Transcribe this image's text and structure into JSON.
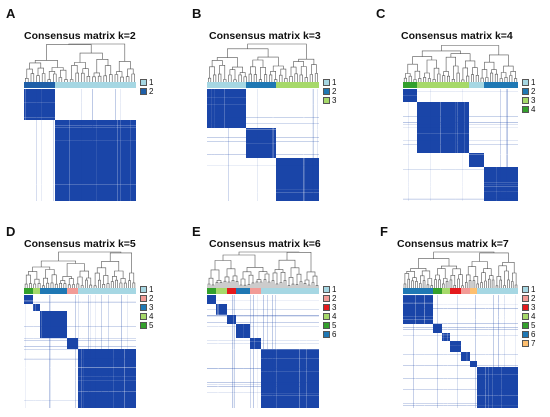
{
  "colors": {
    "matrix_fill": "#1a45a8",
    "matrix_bg": "#ffffff",
    "dendrogram_line": "#555555",
    "classes": {
      "1": "#a6d7e3",
      "2": "#f29b96",
      "3": "#e41a1c",
      "4": "#a6d96a",
      "5": "#33a02c",
      "6": "#1f78b4",
      "7": "#fdbf6f",
      "k2_2": "#1f5fa8",
      "k3_2": "#1f78b4",
      "k3_3": "#a6d96a",
      "k4_4": "#33a02c",
      "k5_2": "#f29b96",
      "k5_3": "#1f78b4",
      "k5_4": "#a6d96a",
      "k5_5": "#33a02c"
    }
  },
  "panels": [
    {
      "letter": "A",
      "title": "Consensus matrix k=2",
      "k": 2,
      "legend": [
        {
          "label": "1",
          "color": "#a6d7e3"
        },
        {
          "label": "2",
          "color": "#1f5fa8"
        }
      ],
      "blocks": [
        0.28,
        0.72
      ],
      "order": [
        "k2_2",
        "1"
      ],
      "noise": 0.1
    },
    {
      "letter": "B",
      "title": "Consensus matrix k=3",
      "k": 3,
      "legend": [
        {
          "label": "1",
          "color": "#a6d7e3"
        },
        {
          "label": "2",
          "color": "#1f78b4"
        },
        {
          "label": "3",
          "color": "#a6d96a"
        }
      ],
      "blocks": [
        0.35,
        0.27,
        0.38
      ],
      "order": [
        "1",
        "k3_2",
        "k3_3"
      ],
      "noise": 0.12
    },
    {
      "letter": "C",
      "title": "Consensus matrix k=4",
      "k": 4,
      "legend": [
        {
          "label": "1",
          "color": "#a6d7e3"
        },
        {
          "label": "2",
          "color": "#1f78b4"
        },
        {
          "label": "3",
          "color": "#a6d96a"
        },
        {
          "label": "4",
          "color": "#33a02c"
        }
      ],
      "blocks": [
        0.12,
        0.45,
        0.13,
        0.3
      ],
      "order": [
        "k4_4",
        "k3_3",
        "1",
        "k3_2"
      ],
      "noise": 0.14
    },
    {
      "letter": "D",
      "title": "Consensus matrix k=5",
      "k": 5,
      "legend": [
        {
          "label": "1",
          "color": "#a6d7e3"
        },
        {
          "label": "2",
          "color": "#f29b96"
        },
        {
          "label": "3",
          "color": "#1f78b4"
        },
        {
          "label": "4",
          "color": "#a6d96a"
        },
        {
          "label": "5",
          "color": "#33a02c"
        }
      ],
      "blocks": [
        0.08,
        0.06,
        0.24,
        0.1,
        0.52
      ],
      "order": [
        "k5_5",
        "k5_4",
        "k5_3",
        "k5_2",
        "1"
      ],
      "noise": 0.18
    },
    {
      "letter": "E",
      "title": "Consensus matrix k=6",
      "k": 6,
      "legend": [
        {
          "label": "1",
          "color": "#a6d7e3"
        },
        {
          "label": "2",
          "color": "#f29b96"
        },
        {
          "label": "3",
          "color": "#e41a1c"
        },
        {
          "label": "4",
          "color": "#a6d96a"
        },
        {
          "label": "5",
          "color": "#33a02c"
        },
        {
          "label": "6",
          "color": "#1f78b4"
        }
      ],
      "blocks": [
        0.08,
        0.1,
        0.08,
        0.12,
        0.1,
        0.52
      ],
      "order": [
        "5",
        "4",
        "3",
        "6",
        "2",
        "1"
      ],
      "noise": 0.2
    },
    {
      "letter": "F",
      "title": "Consensus matrix k=7",
      "k": 7,
      "legend": [
        {
          "label": "1",
          "color": "#a6d7e3"
        },
        {
          "label": "2",
          "color": "#f29b96"
        },
        {
          "label": "3",
          "color": "#e41a1c"
        },
        {
          "label": "4",
          "color": "#a6d96a"
        },
        {
          "label": "5",
          "color": "#33a02c"
        },
        {
          "label": "6",
          "color": "#1f78b4"
        },
        {
          "label": "7",
          "color": "#fdbf6f"
        }
      ],
      "blocks": [
        0.26,
        0.08,
        0.07,
        0.09,
        0.08,
        0.06,
        0.36
      ],
      "order": [
        "6",
        "5",
        "4",
        "3",
        "2",
        "7",
        "1"
      ],
      "noise": 0.22
    }
  ]
}
